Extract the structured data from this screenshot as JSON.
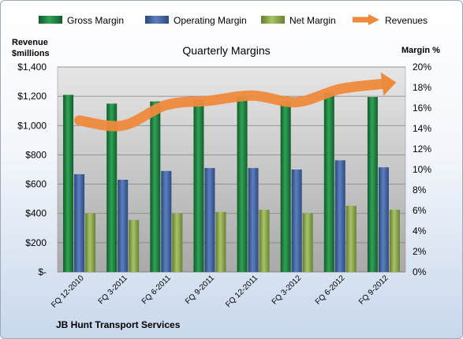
{
  "chart_data": {
    "type": "bar",
    "title": "Quarterly Margins",
    "footer": "JB Hunt Transport Services",
    "left_axis": {
      "title_line1": "Revenue",
      "title_line2": "$millions",
      "range": [
        0,
        1400
      ],
      "ticks": [
        "$-",
        "$200",
        "$400",
        "$600",
        "$800",
        "$1,000",
        "$1,200",
        "$1,400"
      ]
    },
    "right_axis": {
      "title": "Margin %",
      "range": [
        0,
        20
      ],
      "ticks": [
        "0%",
        "2%",
        "4%",
        "6%",
        "8%",
        "10%",
        "12%",
        "14%",
        "16%",
        "18%",
        "20%"
      ]
    },
    "categories": [
      "FQ 12-2010",
      "FQ 3-2011",
      "FQ 6-2011",
      "FQ 9-2011",
      "FQ 12-2011",
      "FQ 3-2012",
      "FQ 6-2012",
      "FQ 9-2012"
    ],
    "series": [
      {
        "name": "Gross Margin",
        "type": "bar",
        "axis": "left",
        "color": "#1e7a3c",
        "values": [
          1210,
          1150,
          1165,
          1175,
          1195,
          1165,
          1225,
          1195
        ]
      },
      {
        "name": "Operating Margin",
        "type": "bar",
        "axis": "left",
        "color": "#3e5f9c",
        "values": [
          668,
          630,
          690,
          710,
          710,
          700,
          763,
          715
        ]
      },
      {
        "name": "Net Margin",
        "type": "bar",
        "axis": "left",
        "color": "#8aa84a",
        "values": [
          400,
          355,
          400,
          410,
          425,
          400,
          452,
          425
        ]
      },
      {
        "name": "Revenues",
        "type": "line",
        "axis": "left",
        "color": "#ee8a3c",
        "values": [
          1035,
          1000,
          1140,
          1170,
          1205,
          1160,
          1250,
          1285
        ]
      }
    ],
    "grid": true,
    "legend_position": "top"
  }
}
